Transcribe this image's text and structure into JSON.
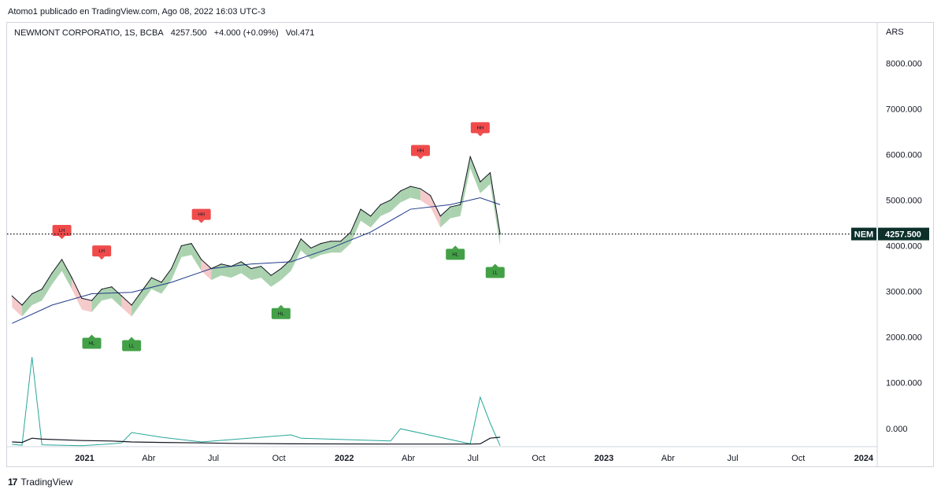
{
  "header": {
    "publish_line": "Atomo1 publicado en TradingView.com, Ago 08, 2022 16:03 UTC-3"
  },
  "legend": {
    "symbol": "NEWMONT CORPORATIO, 1S, BCBA",
    "price": "4257.500",
    "change": "+4.000 (+0.09%)",
    "volume": "Vol.471"
  },
  "footer": {
    "brand": "TradingView",
    "logo": "17"
  },
  "colors": {
    "price_line": "#131722",
    "ma_line": "#1e3a8a",
    "cloud_bull": "#8fc394",
    "cloud_bear": "#f2b8b8",
    "label_high": "#f04b4b",
    "label_low": "#43a047",
    "volume_line": "#26a69a",
    "volume_avg": "#131722",
    "last_price_bg": "#0c2f2a"
  },
  "chart_data": {
    "type": "line",
    "currency": "ARS",
    "ylim": [
      -400,
      8900
    ],
    "y_ticks": [
      "8000.000",
      "7000.000",
      "6000.000",
      "5000.000",
      "4000.000",
      "3000.000",
      "2000.000",
      "1000.000",
      "0.000"
    ],
    "y_tick_values": [
      8000,
      7000,
      6000,
      5000,
      4000,
      3000,
      2000,
      1000,
      0
    ],
    "x_ticks": [
      {
        "label": "2021",
        "bold": true,
        "date": "2021-01-01"
      },
      {
        "label": "Abr",
        "bold": false,
        "date": "2021-04-01"
      },
      {
        "label": "Jul",
        "bold": false,
        "date": "2021-07-01"
      },
      {
        "label": "Oct",
        "bold": false,
        "date": "2021-10-01"
      },
      {
        "label": "2022",
        "bold": true,
        "date": "2022-01-01"
      },
      {
        "label": "Abr",
        "bold": false,
        "date": "2022-04-01"
      },
      {
        "label": "Jul",
        "bold": false,
        "date": "2022-07-01"
      },
      {
        "label": "Oct",
        "bold": false,
        "date": "2022-10-01"
      },
      {
        "label": "2023",
        "bold": true,
        "date": "2023-01-01"
      },
      {
        "label": "Abr",
        "bold": false,
        "date": "2023-04-01"
      },
      {
        "label": "Jul",
        "bold": false,
        "date": "2023-07-01"
      },
      {
        "label": "Oct",
        "bold": false,
        "date": "2023-10-01"
      },
      {
        "label": "2024",
        "bold": true,
        "date": "2024-01-01"
      }
    ],
    "last_price": {
      "symbol": "NEM",
      "value": 4257.5,
      "label": "4257.500"
    },
    "price": {
      "dates": [
        "2020-09-21",
        "2020-10-05",
        "2020-10-19",
        "2020-11-02",
        "2020-11-16",
        "2020-11-30",
        "2020-12-14",
        "2020-12-28",
        "2021-01-11",
        "2021-01-25",
        "2021-02-08",
        "2021-02-22",
        "2021-03-08",
        "2021-03-22",
        "2021-04-05",
        "2021-04-19",
        "2021-05-03",
        "2021-05-17",
        "2021-05-31",
        "2021-06-14",
        "2021-06-28",
        "2021-07-12",
        "2021-07-26",
        "2021-08-09",
        "2021-08-23",
        "2021-09-06",
        "2021-09-20",
        "2021-10-04",
        "2021-10-18",
        "2021-11-01",
        "2021-11-15",
        "2021-11-29",
        "2021-12-13",
        "2021-12-27",
        "2022-01-10",
        "2022-01-24",
        "2022-02-07",
        "2022-02-21",
        "2022-03-07",
        "2022-03-21",
        "2022-04-04",
        "2022-04-18",
        "2022-05-02",
        "2022-05-16",
        "2022-05-30",
        "2022-06-13",
        "2022-06-27",
        "2022-07-11",
        "2022-07-25",
        "2022-08-08"
      ],
      "values": [
        2900,
        2700,
        2950,
        3050,
        3400,
        3700,
        3300,
        2850,
        2800,
        3050,
        3100,
        2900,
        2700,
        3000,
        3300,
        3200,
        3500,
        4000,
        4050,
        3700,
        3500,
        3600,
        3550,
        3650,
        3500,
        3550,
        3350,
        3500,
        3700,
        4150,
        3950,
        4050,
        4100,
        4100,
        4300,
        4800,
        4650,
        4900,
        5000,
        5200,
        5300,
        5250,
        5100,
        4650,
        4850,
        4900,
        5950,
        5400,
        5600,
        4257.5
      ]
    },
    "moving_average": {
      "dates": [
        "2020-09-21",
        "2020-11-16",
        "2021-01-11",
        "2021-03-08",
        "2021-05-03",
        "2021-06-28",
        "2021-08-23",
        "2021-10-18",
        "2021-12-13",
        "2022-02-07",
        "2022-04-04",
        "2022-05-30",
        "2022-07-11",
        "2022-08-08"
      ],
      "values": [
        2300,
        2700,
        2950,
        2980,
        3200,
        3500,
        3600,
        3650,
        3950,
        4300,
        4800,
        4900,
        5050,
        4900
      ]
    },
    "volume": {
      "ylim": [
        0,
        2300
      ],
      "dates": [
        "2020-09-21",
        "2020-10-05",
        "2020-10-19",
        "2020-11-02",
        "2020-12-28",
        "2021-02-08",
        "2021-02-22",
        "2021-03-08",
        "2021-04-19",
        "2021-06-14",
        "2021-07-26",
        "2021-10-18",
        "2021-11-01",
        "2022-03-07",
        "2022-03-21",
        "2022-06-27",
        "2022-07-11",
        "2022-07-25",
        "2022-08-08"
      ],
      "values": [
        50,
        30,
        1900,
        40,
        20,
        60,
        80,
        300,
        200,
        100,
        150,
        250,
        180,
        120,
        380,
        60,
        1050,
        500,
        20
      ],
      "avg_values": [
        100,
        90,
        180,
        160,
        130,
        120,
        110,
        100,
        90,
        80,
        70,
        60,
        60,
        55,
        55,
        55,
        60,
        180,
        200
      ]
    },
    "labels_high": [
      {
        "text": "LH",
        "date": "2020-11-30",
        "value": 4250
      },
      {
        "text": "LH",
        "date": "2021-01-25",
        "value": 3800
      },
      {
        "text": "HH",
        "date": "2021-06-14",
        "value": 4600
      },
      {
        "text": "HH",
        "date": "2022-04-18",
        "value": 6000
      },
      {
        "text": "HH",
        "date": "2022-07-11",
        "value": 6500
      }
    ],
    "labels_low": [
      {
        "text": "HL",
        "date": "2021-01-11",
        "value": 1950
      },
      {
        "text": "LL",
        "date": "2021-03-08",
        "value": 1900
      },
      {
        "text": "HL",
        "date": "2021-10-04",
        "value": 2600
      },
      {
        "text": "HL",
        "date": "2022-06-06",
        "value": 3900
      },
      {
        "text": "LL",
        "date": "2022-08-01",
        "value": 3500
      }
    ]
  }
}
